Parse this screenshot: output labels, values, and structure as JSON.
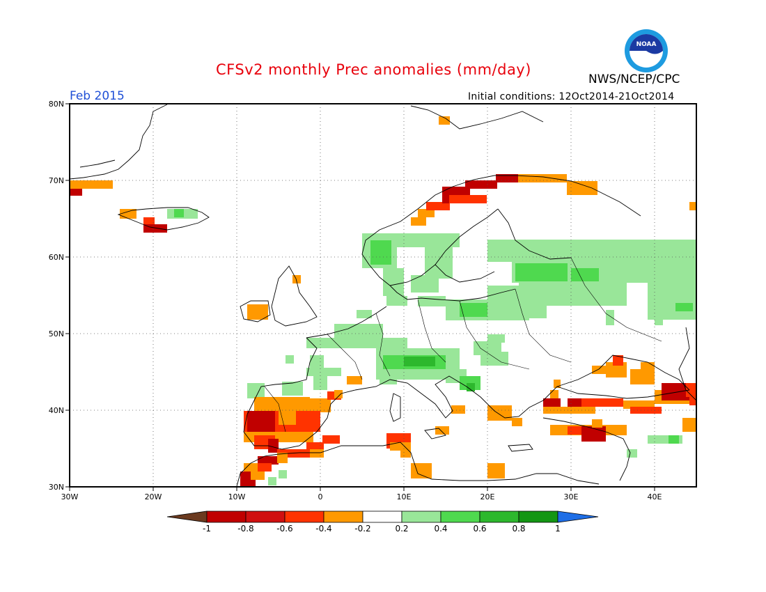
{
  "title": "CFSv2 monthly Prec anomalies (mm/day)",
  "agency": "NWS/NCEP/CPC",
  "valid_month": "Feb 2015",
  "initial_conditions": "Initial conditions: 12Oct2014-21Oct2014",
  "logo": {
    "icon": "noaa-logo-icon",
    "text": "NOAA"
  },
  "map": {
    "region": "Europe",
    "lon_range": [
      -30,
      45
    ],
    "lat_range": [
      30,
      80
    ],
    "grid": "dotted",
    "lat_labels": [
      "30N",
      "40N",
      "50N",
      "60N",
      "70N",
      "80N"
    ],
    "lon_labels": [
      "30W",
      "20W",
      "10W",
      "0",
      "10E",
      "20E",
      "30E",
      "40E"
    ]
  },
  "colorbar": {
    "labels": [
      "-1",
      "-0.8",
      "-0.6",
      "-0.4",
      "-0.2",
      "0.2",
      "0.4",
      "0.6",
      "0.8",
      "1"
    ],
    "colors": [
      "#6b3a1f",
      "#c00000",
      "#ff3300",
      "#ff9900",
      "#ffffff",
      "#99e699",
      "#4fd94f",
      "#2db82d",
      "#149614",
      "#1e6ee6"
    ]
  },
  "anomaly_regions": [
    {
      "area": "Norway coast",
      "bin": "-1 to -0.8"
    },
    {
      "area": "Iberian Peninsula",
      "bin": "-0.8 to -0.4"
    },
    {
      "area": "Morocco",
      "bin": "-0.8 to -0.4"
    },
    {
      "area": "Turkey",
      "bin": "-1 to -0.4"
    },
    {
      "area": "Iceland south",
      "bin": "-0.8 to -0.4"
    },
    {
      "area": "Northern Italy / Alps",
      "bin": "0.4 to 0.8"
    },
    {
      "area": "Sweden / Baltic / Russia",
      "bin": "0.2 to 0.4"
    },
    {
      "area": "France / Germany",
      "bin": "0.2 to 0.4"
    }
  ]
}
